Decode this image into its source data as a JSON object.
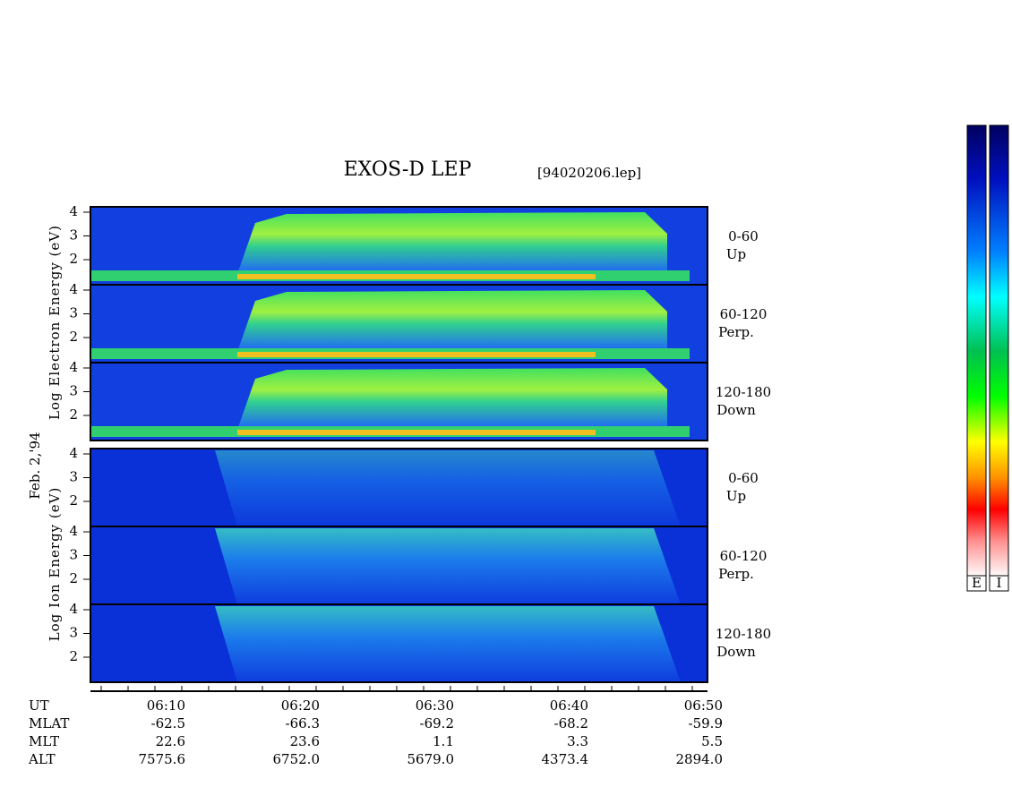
{
  "header": {
    "title": "EXOS-D LEP",
    "file": "[94020206.lep]"
  },
  "y_axis": {
    "electron_label": "Log Electron Energy (eV)",
    "date": "Feb. 2,'94",
    "ion_label": "Log Ion Energy (eV)",
    "ticks": [
      4,
      3,
      2
    ]
  },
  "panels": [
    {
      "angle": "0-60",
      "direction": "Up"
    },
    {
      "angle": "60-120",
      "direction": "Perp."
    },
    {
      "angle": "120-180",
      "direction": "Down"
    },
    {
      "angle": "0-60",
      "direction": "Up"
    },
    {
      "angle": "60-120",
      "direction": "Perp."
    },
    {
      "angle": "120-180",
      "direction": "Down"
    }
  ],
  "time_axis": {
    "rows": [
      [
        "UT",
        "06:10",
        "06:20",
        "06:30",
        "06:40",
        "06:50"
      ],
      [
        "MLAT",
        "-62.5",
        "-66.3",
        "-69.2",
        "-68.2",
        "-59.9"
      ],
      [
        "MLT",
        "22.6",
        "23.6",
        "1.1",
        "3.3",
        "5.5"
      ],
      [
        "ALT",
        "7575.6",
        "6752.0",
        "5679.0",
        "4373.4",
        "2894.0"
      ]
    ]
  },
  "colorbars": [
    "E",
    "I"
  ]
}
